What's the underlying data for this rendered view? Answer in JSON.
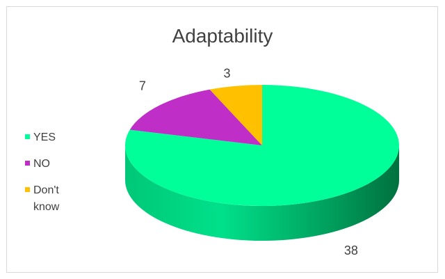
{
  "chart_data": {
    "type": "pie",
    "title": "Adaptability",
    "categories": [
      "YES",
      "NO",
      "Don't know"
    ],
    "values": [
      38,
      7,
      3
    ],
    "colors": [
      "#00ff99",
      "#c02ec8",
      "#ffc000"
    ],
    "legend_position": "left",
    "three_d": true
  }
}
